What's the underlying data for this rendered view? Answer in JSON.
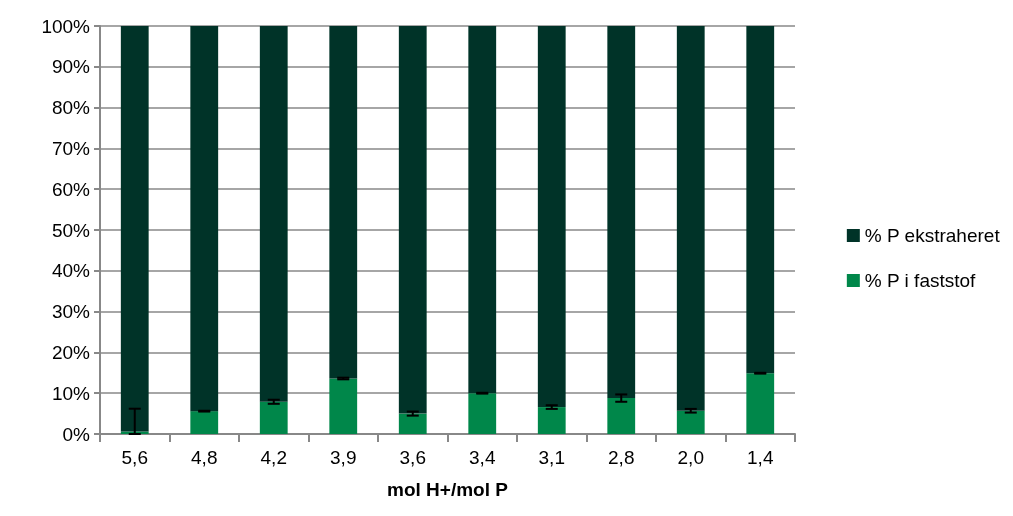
{
  "chart_data": {
    "type": "bar",
    "stacked": true,
    "xlabel": "mol H+/mol P",
    "categories": [
      "5,6",
      "4,8",
      "4,2",
      "3,9",
      "3,6",
      "3,4",
      "3,1",
      "2,8",
      "2,0",
      "1,4"
    ],
    "series": [
      {
        "name": "% P i faststof",
        "color": "#00874a",
        "values": [
          0.6,
          5.6,
          7.9,
          13.6,
          5.0,
          10.0,
          6.6,
          8.8,
          5.7,
          14.9
        ],
        "errors": [
          [
            0,
            6.2
          ],
          0.1,
          0.5,
          0.2,
          0.5,
          0.1,
          0.45,
          0.9,
          0.45,
          0.1
        ]
      },
      {
        "name": "% P ekstraheret",
        "color": "#003328",
        "values": [
          99.4,
          94.4,
          92.1,
          86.4,
          95.0,
          90.0,
          93.4,
          91.2,
          94.3,
          85.1
        ]
      }
    ],
    "ylim": [
      0,
      100
    ],
    "yticks": [
      {
        "value": 0,
        "label": "0%"
      },
      {
        "value": 10,
        "label": "10%"
      },
      {
        "value": 20,
        "label": "20%"
      },
      {
        "value": 30,
        "label": "30%"
      },
      {
        "value": 40,
        "label": "40%"
      },
      {
        "value": 50,
        "label": "50%"
      },
      {
        "value": 60,
        "label": "60%"
      },
      {
        "value": 70,
        "label": "70%"
      },
      {
        "value": 80,
        "label": "80%"
      },
      {
        "value": 90,
        "label": "90%"
      },
      {
        "value": 100,
        "label": "100%"
      }
    ],
    "grid": "y",
    "legend": "right"
  }
}
